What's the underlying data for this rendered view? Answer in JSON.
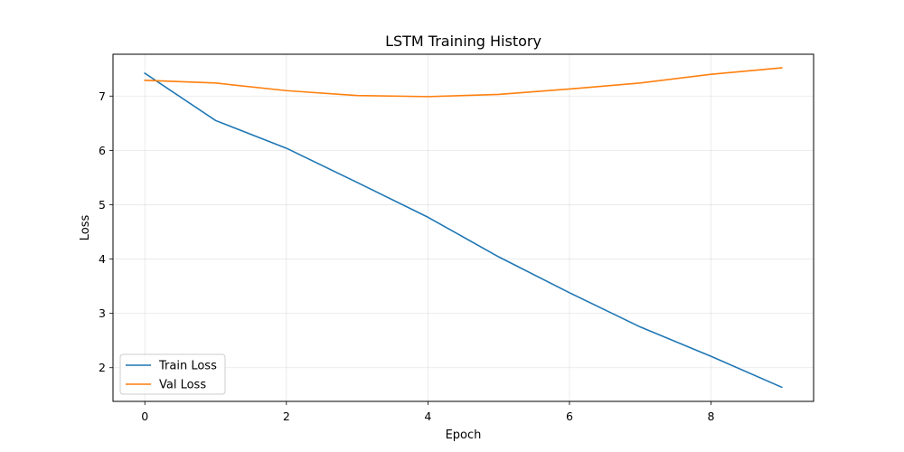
{
  "chart_data": {
    "type": "line",
    "title": "LSTM Training History",
    "xlabel": "Epoch",
    "ylabel": "Loss",
    "x": [
      0,
      1,
      2,
      3,
      4,
      5,
      6,
      7,
      8,
      9
    ],
    "xlim": [
      -0.45,
      9.45
    ],
    "ylim": [
      1.38,
      7.77
    ],
    "xticks": [
      0,
      2,
      4,
      6,
      8
    ],
    "yticks": [
      2,
      3,
      4,
      5,
      6,
      7
    ],
    "grid": true,
    "legend_position": "lower-left",
    "series": [
      {
        "name": "Train Loss",
        "color": "#1f77b4",
        "values": [
          7.42,
          6.55,
          6.04,
          5.41,
          4.77,
          4.04,
          3.38,
          2.75,
          2.21,
          1.64
        ]
      },
      {
        "name": "Val Loss",
        "color": "#ff7f0e",
        "values": [
          7.29,
          7.24,
          7.1,
          7.01,
          6.99,
          7.03,
          7.13,
          7.24,
          7.4,
          7.52
        ]
      }
    ]
  }
}
